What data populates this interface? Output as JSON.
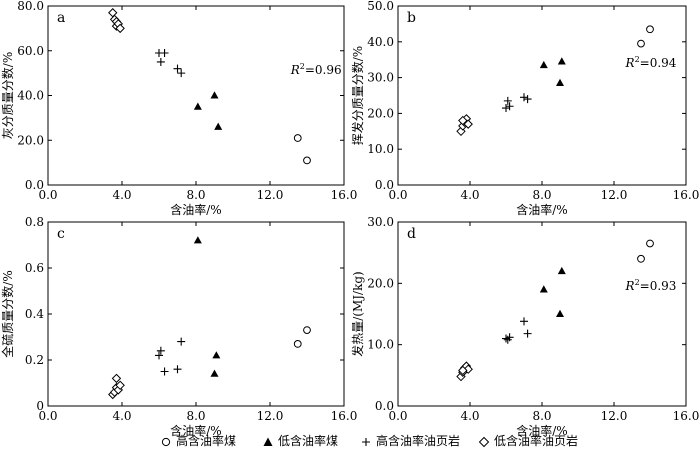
{
  "chart_data": [
    {
      "type": "scatter",
      "panel_label": "a",
      "xlabel": "含油率/%",
      "ylabel": "灰分质量分数/%",
      "xlim": [
        0,
        16
      ],
      "ylim": [
        0,
        80
      ],
      "x_ticks": [
        "0.0",
        "4.0",
        "8.0",
        "12.0",
        "16.0"
      ],
      "y_ticks": [
        "0.0",
        "20.0",
        "40.0",
        "60.0",
        "80.0"
      ],
      "annotation": {
        "prefix": "R",
        "sup": "2",
        "value": "=0.96"
      },
      "series": [
        {
          "name": "高含油率煤",
          "marker": "circle",
          "points": [
            [
              13.5,
              21
            ],
            [
              14.0,
              11
            ]
          ]
        },
        {
          "name": "低含油率煤",
          "marker": "triangle",
          "points": [
            [
              8.1,
              35
            ],
            [
              9.0,
              40
            ],
            [
              9.2,
              26
            ]
          ]
        },
        {
          "name": "高含油率油页岩",
          "marker": "plus",
          "points": [
            [
              6.0,
              59
            ],
            [
              6.1,
              55
            ],
            [
              6.3,
              59
            ],
            [
              7.0,
              52
            ],
            [
              7.2,
              50
            ]
          ]
        },
        {
          "name": "低含油率油页岩",
          "marker": "diamond",
          "points": [
            [
              3.5,
              77
            ],
            [
              3.6,
              74
            ],
            [
              3.7,
              73
            ],
            [
              3.7,
              71
            ],
            [
              3.8,
              72
            ],
            [
              3.9,
              70
            ]
          ]
        }
      ]
    },
    {
      "type": "scatter",
      "panel_label": "b",
      "xlabel": "含油率/%",
      "ylabel": "挥发分质量分数/%",
      "xlim": [
        0,
        16
      ],
      "ylim": [
        0,
        50
      ],
      "x_ticks": [
        "0.0",
        "4.0",
        "8.0",
        "12.0",
        "16.0"
      ],
      "y_ticks": [
        "0.0",
        "10.0",
        "20.0",
        "30.0",
        "40.0",
        "50.0"
      ],
      "annotation": {
        "prefix": "R",
        "sup": "2",
        "value": "=0.94"
      },
      "series": [
        {
          "name": "高含油率煤",
          "marker": "circle",
          "points": [
            [
              13.5,
              39.5
            ],
            [
              14.0,
              43.5
            ]
          ]
        },
        {
          "name": "低含油率煤",
          "marker": "triangle",
          "points": [
            [
              8.1,
              33.5
            ],
            [
              9.0,
              28.5
            ],
            [
              9.1,
              34.5
            ]
          ]
        },
        {
          "name": "高含油率油页岩",
          "marker": "plus",
          "points": [
            [
              6.0,
              21.5
            ],
            [
              6.2,
              22
            ],
            [
              6.1,
              23.5
            ],
            [
              7.0,
              24.5
            ],
            [
              7.2,
              24
            ]
          ]
        },
        {
          "name": "低含油率油页岩",
          "marker": "diamond",
          "points": [
            [
              3.5,
              15
            ],
            [
              3.6,
              16.5
            ],
            [
              3.7,
              17.5
            ],
            [
              3.8,
              18.5
            ],
            [
              3.9,
              17
            ],
            [
              3.6,
              18
            ]
          ]
        }
      ]
    },
    {
      "type": "scatter",
      "panel_label": "c",
      "xlabel": "含油率/%",
      "ylabel": "全硫质量分数/%",
      "xlim": [
        0,
        16
      ],
      "ylim": [
        0,
        0.8
      ],
      "x_ticks": [
        "0.0",
        "4.0",
        "8.0",
        "12.0",
        "16.0"
      ],
      "y_ticks": [
        "0",
        "0.2",
        "0.4",
        "0.6",
        "0.8"
      ],
      "series": [
        {
          "name": "高含油率煤",
          "marker": "circle",
          "points": [
            [
              13.5,
              0.27
            ],
            [
              14.0,
              0.33
            ]
          ]
        },
        {
          "name": "低含油率煤",
          "marker": "triangle",
          "points": [
            [
              8.1,
              0.72
            ],
            [
              9.0,
              0.14
            ],
            [
              9.1,
              0.22
            ]
          ]
        },
        {
          "name": "高含油率油页岩",
          "marker": "plus",
          "points": [
            [
              6.0,
              0.22
            ],
            [
              6.1,
              0.24
            ],
            [
              6.3,
              0.15
            ],
            [
              7.0,
              0.16
            ],
            [
              7.2,
              0.28
            ]
          ]
        },
        {
          "name": "低含油率油页岩",
          "marker": "diamond",
          "points": [
            [
              3.5,
              0.05
            ],
            [
              3.6,
              0.06
            ],
            [
              3.7,
              0.08
            ],
            [
              3.8,
              0.07
            ],
            [
              3.9,
              0.09
            ],
            [
              3.7,
              0.12
            ]
          ]
        }
      ]
    },
    {
      "type": "scatter",
      "panel_label": "d",
      "xlabel": "含油率/%",
      "ylabel": "发热量/(MJ/kg)",
      "xlim": [
        0,
        16
      ],
      "ylim": [
        0,
        30
      ],
      "x_ticks": [
        "0.0",
        "4.0",
        "8.0",
        "12.0",
        "16.0"
      ],
      "y_ticks": [
        "0.0",
        "10.0",
        "20.0",
        "30.0"
      ],
      "annotation": {
        "prefix": "R",
        "sup": "2",
        "value": "=0.93"
      },
      "series": [
        {
          "name": "高含油率煤",
          "marker": "circle",
          "points": [
            [
              13.5,
              24
            ],
            [
              14.0,
              26.5
            ]
          ]
        },
        {
          "name": "低含油率煤",
          "marker": "triangle",
          "points": [
            [
              8.1,
              19
            ],
            [
              9.0,
              15
            ],
            [
              9.1,
              22
            ]
          ]
        },
        {
          "name": "高含油率油页岩",
          "marker": "plus",
          "points": [
            [
              6.0,
              11
            ],
            [
              6.2,
              11.2
            ],
            [
              6.1,
              10.8
            ],
            [
              7.0,
              13.8
            ],
            [
              7.2,
              11.8
            ]
          ]
        },
        {
          "name": "低含油率油页岩",
          "marker": "diamond",
          "points": [
            [
              3.5,
              4.8
            ],
            [
              3.6,
              5.5
            ],
            [
              3.7,
              6.2
            ],
            [
              3.8,
              6.5
            ],
            [
              3.9,
              6
            ],
            [
              3.6,
              5.8
            ]
          ]
        }
      ]
    }
  ],
  "legend": [
    {
      "marker": "circle",
      "label": "高含油率煤"
    },
    {
      "marker": "triangle",
      "label": "低含油率煤"
    },
    {
      "marker": "plus",
      "label": "高含油率油页岩"
    },
    {
      "marker": "diamond",
      "label": "低含油率油页岩"
    }
  ]
}
